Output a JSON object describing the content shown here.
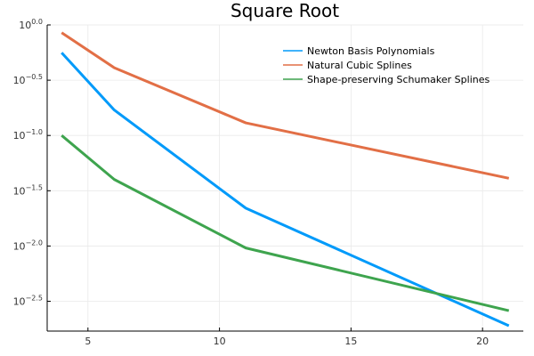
{
  "chart_data": {
    "type": "line",
    "title": "Square Root",
    "xlabel": "",
    "ylabel": "",
    "y_scale": "log10",
    "xlim": [
      3.45,
      21.55
    ],
    "ylim": [
      0.0017,
      1.0
    ],
    "x_ticks": [
      5,
      10,
      15,
      20
    ],
    "y_ticks": [
      {
        "value": 1.0,
        "base": "10",
        "exp": "0.0"
      },
      {
        "value": 0.3162,
        "base": "10",
        "exp": "−0.5"
      },
      {
        "value": 0.1,
        "base": "10",
        "exp": "−1.0"
      },
      {
        "value": 0.03162,
        "base": "10",
        "exp": "−1.5"
      },
      {
        "value": 0.01,
        "base": "10",
        "exp": "−2.0"
      },
      {
        "value": 0.003162,
        "base": "10",
        "exp": "−2.5"
      }
    ],
    "grid": true,
    "legend_position": "top-right",
    "series": [
      {
        "name": "Newton Basis Polynomials",
        "color": "#009AFA",
        "x": [
          4,
          6,
          11,
          21
        ],
        "y": [
          0.56,
          0.17,
          0.022,
          0.0019
        ]
      },
      {
        "name": "Natural Cubic Splines",
        "color": "#E26F46",
        "x": [
          4,
          6,
          11,
          21
        ],
        "y": [
          0.85,
          0.41,
          0.13,
          0.041
        ]
      },
      {
        "name": "Shape-preserving Schumaker Splines",
        "color": "#3EA44E",
        "x": [
          4,
          6,
          11,
          21
        ],
        "y": [
          0.1,
          0.04,
          0.0096,
          0.0026
        ]
      }
    ]
  }
}
